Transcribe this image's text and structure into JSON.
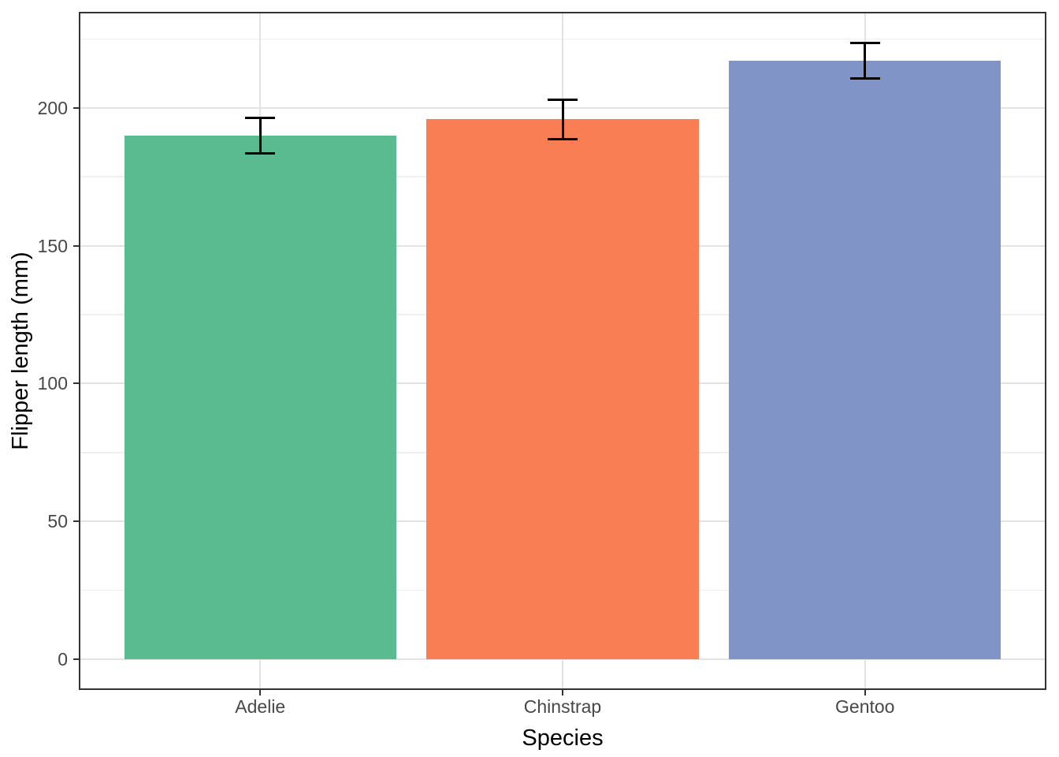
{
  "chart_data": {
    "type": "bar",
    "title": "",
    "xlabel": "Species",
    "ylabel": "Flipper length (mm)",
    "categories": [
      "Adelie",
      "Chinstrap",
      "Gentoo"
    ],
    "values": [
      189.95,
      195.82,
      217.19
    ],
    "error_bars": {
      "kind": "mean plus/minus sd",
      "sd": [
        6.54,
        7.13,
        6.48
      ],
      "low": [
        183.41,
        188.69,
        210.71
      ],
      "high": [
        196.49,
        202.95,
        223.67
      ]
    },
    "bar_colors": [
      "#5ABB91",
      "#F97E54",
      "#8094C8"
    ],
    "y_major_ticks": [
      0,
      50,
      100,
      150,
      200
    ],
    "y_minor_gridlines": [
      25,
      75,
      125,
      175,
      225
    ],
    "ylim": [
      -11.18,
      234.85
    ],
    "bar_width_fraction": 0.9,
    "errorbar_cap_fraction": 0.1,
    "grid": "major and minor horizontal, major vertical at category centers",
    "legend": "none"
  },
  "style": {
    "background": "#FFFFFF",
    "panel_border_color": "#333333",
    "grid_major_color": "#E3E3E3",
    "grid_minor_color": "#EFEFEF",
    "errorbar_color": "#000000",
    "tick_color": "#333333",
    "tick_label_color": "#474747",
    "axis_title_color": "#000000"
  }
}
